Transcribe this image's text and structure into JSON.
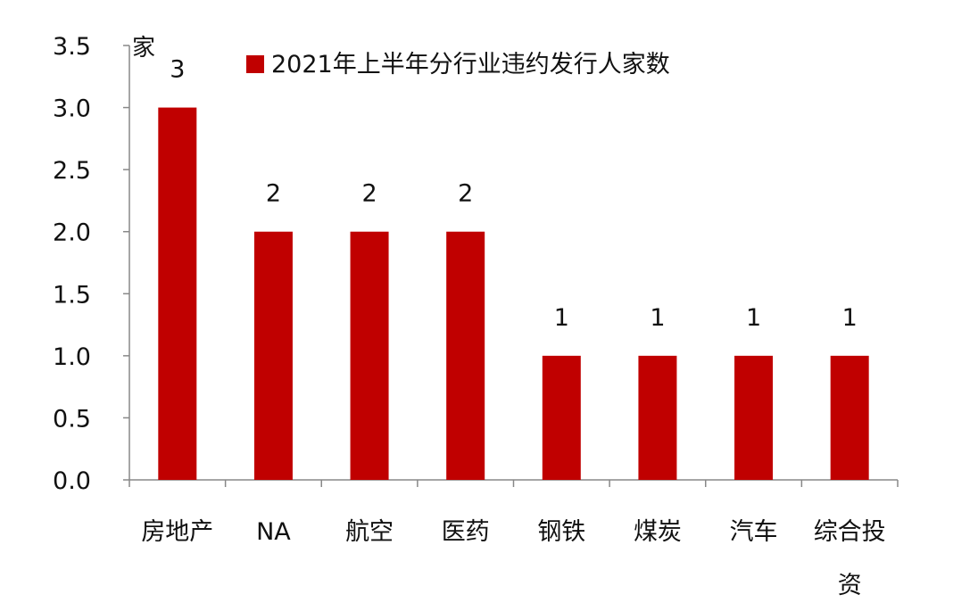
{
  "chart_data": {
    "type": "bar",
    "title": "",
    "xlabel": "",
    "ylabel": "家",
    "categories": [
      "房地产",
      "NA",
      "航空",
      "医药",
      "钢铁",
      "煤炭",
      "汽车",
      "综合投资"
    ],
    "series": [
      {
        "name": "2021年上半年分行业违约发行人家数",
        "values": [
          3,
          2,
          2,
          2,
          1,
          1,
          1,
          1
        ],
        "color": "#C00000"
      }
    ],
    "ylim": [
      0,
      3.5
    ],
    "yticks": [
      "0.0",
      "0.5",
      "1.0",
      "1.5",
      "2.0",
      "2.5",
      "3.0",
      "3.5"
    ],
    "data_labels": [
      "3",
      "2",
      "2",
      "2",
      "1",
      "1",
      "1",
      "1"
    ],
    "grid": false,
    "legend_position": "top"
  }
}
